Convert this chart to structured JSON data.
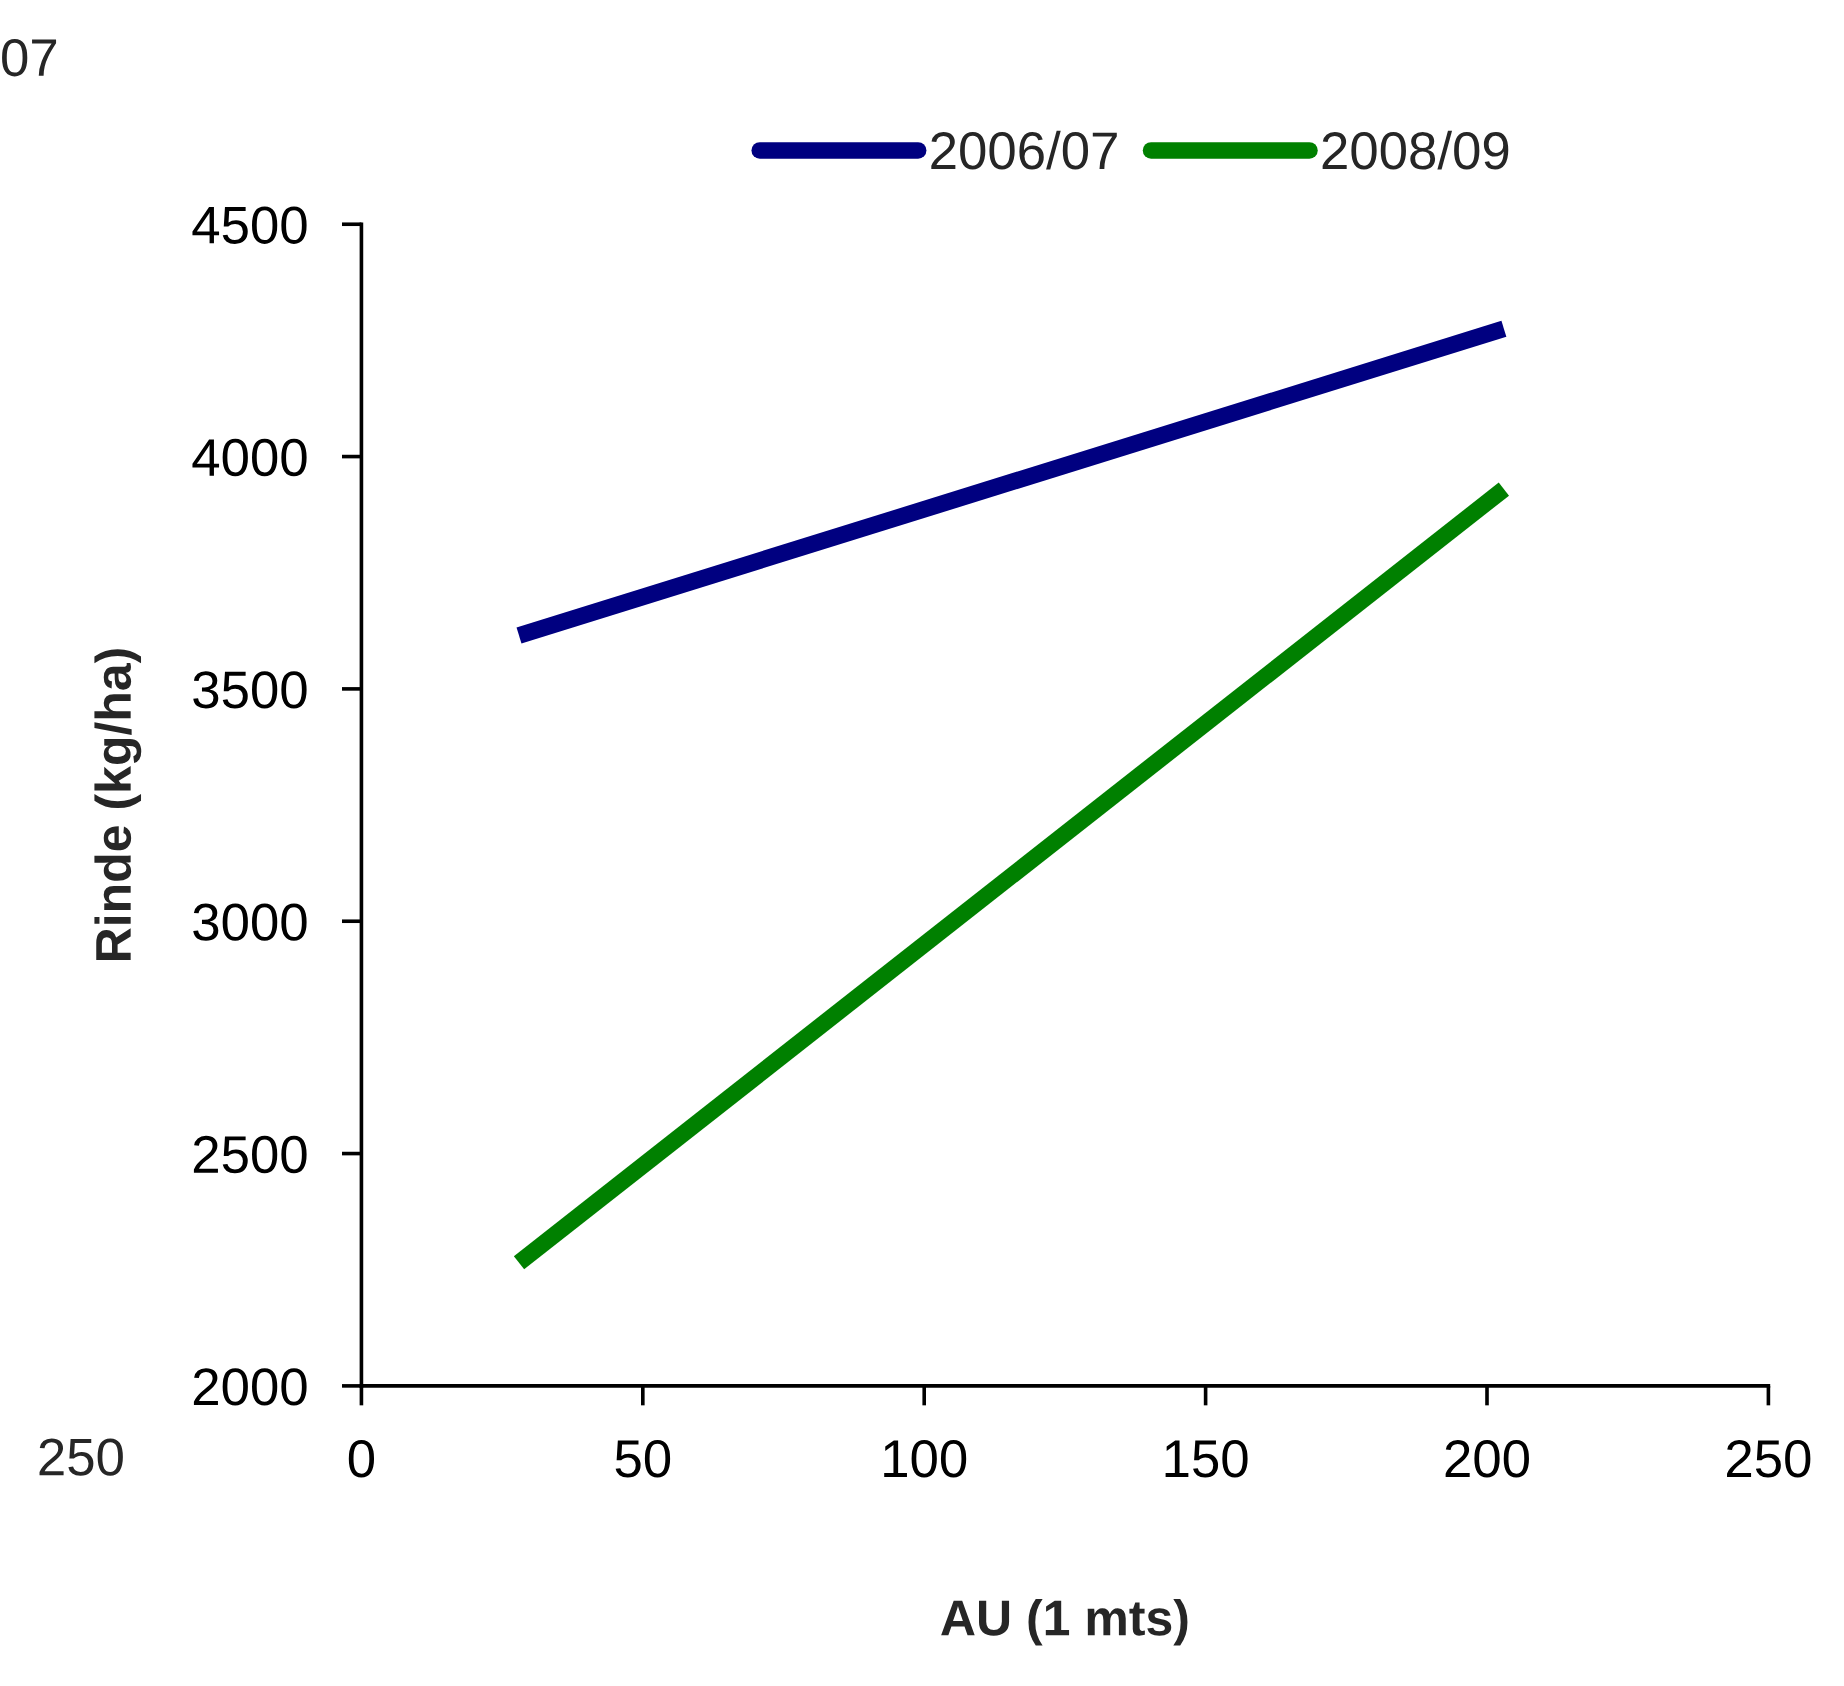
{
  "chart_data": {
    "type": "line",
    "xlabel": "AU (1 mts)",
    "ylabel": "Rinde (kg/ha)",
    "x": [
      28,
      203
    ],
    "series": [
      {
        "name": "2006/07",
        "color": "#000080",
        "values": [
          3615,
          4275
        ]
      },
      {
        "name": "2008/09",
        "color": "#008000",
        "values": [
          2265,
          3930
        ]
      }
    ],
    "xlim": [
      0,
      250
    ],
    "xticks": [
      0,
      50,
      100,
      150,
      200,
      250
    ],
    "ylim": [
      2000,
      4500
    ],
    "yticks": [
      2000,
      2500,
      3000,
      3500,
      4000,
      4500
    ],
    "grid": false,
    "legend": "top",
    "marker": "none",
    "line_style": "solid",
    "annotations": [
      "07",
      "250"
    ]
  }
}
